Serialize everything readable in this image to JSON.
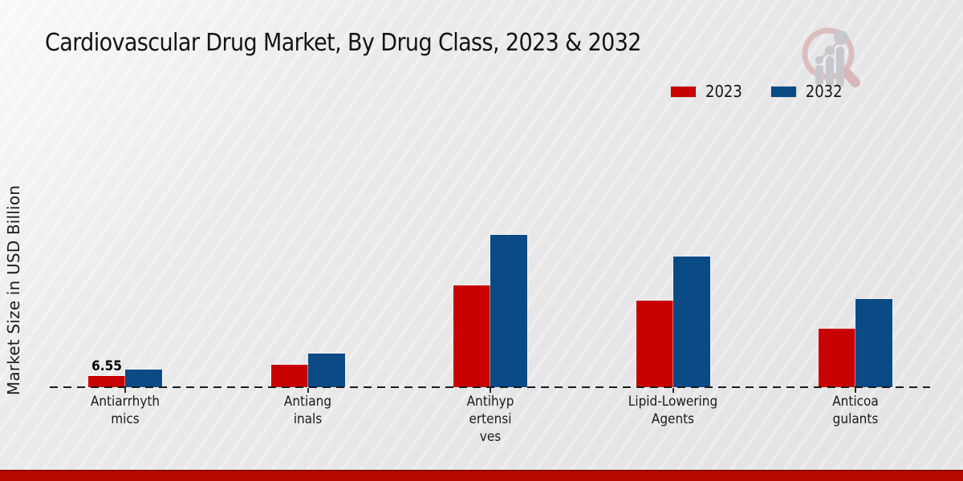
{
  "title": "Cardiovascular Drug Market, By Drug Class, 2023 & 2032",
  "y_axis_label": "Market Size in USD Billion",
  "legend": [
    {
      "label": "2023",
      "color": "#c80200"
    },
    {
      "label": "2032",
      "color": "#0a4b86"
    }
  ],
  "watermark_icon": "magnifier-growth-chart-logo",
  "colors": {
    "bar_2023": "#c80200",
    "bar_2032": "#0a4b86",
    "footer_accent": "#b70800",
    "background": "#e9e9ea"
  },
  "chart_data": {
    "type": "bar",
    "title": "Cardiovascular Drug Market, By Drug Class, 2023 & 2032",
    "ylabel": "Market Size in USD Billion",
    "unit": "USD Billion",
    "categories": [
      "Antiarrhythmics",
      "Antianginals",
      "Antihypertensives",
      "Lipid-Lowering Agents",
      "Anticoagulants"
    ],
    "category_label_lines": [
      [
        "Antiarrhyth",
        "mics"
      ],
      [
        "Antiang",
        "inals"
      ],
      [
        "Antihyp",
        "ertensi",
        "ves"
      ],
      [
        "Lipid-Lowering",
        "Agents"
      ],
      [
        "Anticoa",
        "gulants"
      ]
    ],
    "series": [
      {
        "name": "2023",
        "color": "#c80200",
        "values": [
          6.55,
          12.9,
          59.4,
          50.5,
          34.2
        ]
      },
      {
        "name": "2032",
        "color": "#0a4b86",
        "values": [
          10.3,
          19.5,
          89.0,
          76.3,
          51.5
        ]
      }
    ],
    "labeled_values": [
      {
        "series": "2023",
        "category": "Antiarrhythmics",
        "label": "6.55"
      }
    ],
    "axis": {
      "baseline_style": "dashed",
      "gridlines": false,
      "y_tick_labels": []
    },
    "legend_position": "top-right"
  }
}
